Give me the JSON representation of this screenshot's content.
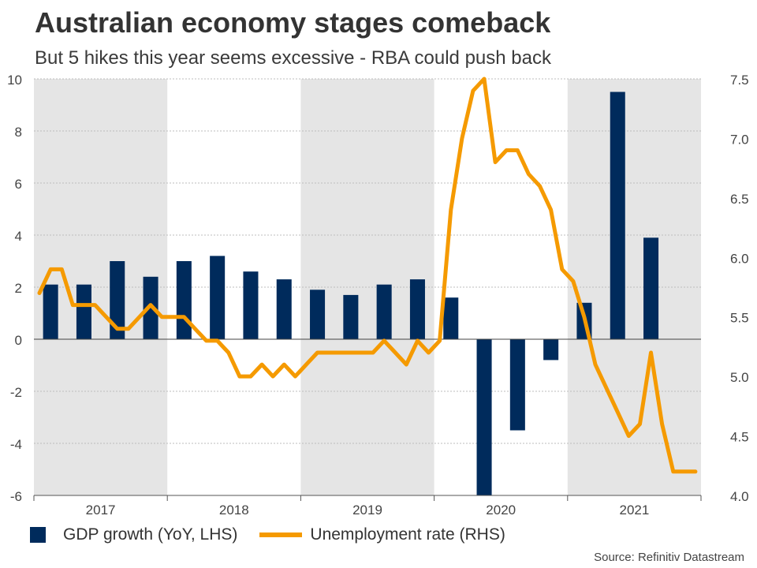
{
  "title": "Australian economy stages comeback",
  "subtitle": "But 5 hikes this year seems excessive - RBA could push back",
  "source": "Source: Refinitiv Datastream",
  "colors": {
    "bar": "#002b5c",
    "line": "#f59a00",
    "shade": "#e5e5e5",
    "grid": "#bdbdbd"
  },
  "legend": {
    "bar_label": "GDP growth (YoY, LHS)",
    "line_label": "Unemployment rate (RHS)"
  },
  "chart_data": {
    "type": "bar",
    "y_left": {
      "range": [
        -6,
        10
      ],
      "ticks": [
        "-6",
        "-4",
        "-2",
        "0",
        "2",
        "4",
        "6",
        "8",
        "10"
      ]
    },
    "y_right": {
      "range": [
        4.0,
        7.5
      ],
      "ticks": [
        "4.0",
        "4.5",
        "5.0",
        "5.5",
        "6.0",
        "6.5",
        "7.0",
        "7.5"
      ]
    },
    "year_labels": [
      "2017",
      "2018",
      "2019",
      "2020",
      "2021"
    ],
    "shaded_years": [
      "2017",
      "2019",
      "2021"
    ],
    "series": [
      {
        "name": "GDP growth (YoY, LHS)",
        "type": "bar",
        "axis": "left",
        "x": [
          "2017-Q1",
          "2017-Q2",
          "2017-Q3",
          "2017-Q4",
          "2018-Q1",
          "2018-Q2",
          "2018-Q3",
          "2018-Q4",
          "2019-Q1",
          "2019-Q2",
          "2019-Q3",
          "2019-Q4",
          "2020-Q1",
          "2020-Q2",
          "2020-Q3",
          "2020-Q4",
          "2021-Q1",
          "2021-Q2",
          "2021-Q3"
        ],
        "values": [
          2.1,
          2.1,
          3.0,
          2.4,
          3.0,
          3.2,
          2.6,
          2.3,
          1.9,
          1.7,
          2.1,
          2.3,
          1.6,
          -6.0,
          -3.5,
          -0.8,
          1.4,
          9.5,
          3.9
        ]
      },
      {
        "name": "Unemployment rate (RHS)",
        "type": "line",
        "axis": "right",
        "x": [
          "2017-01",
          "2017-02",
          "2017-03",
          "2017-04",
          "2017-05",
          "2017-06",
          "2017-07",
          "2017-08",
          "2017-09",
          "2017-10",
          "2017-11",
          "2017-12",
          "2018-01",
          "2018-02",
          "2018-03",
          "2018-04",
          "2018-05",
          "2018-06",
          "2018-07",
          "2018-08",
          "2018-09",
          "2018-10",
          "2018-11",
          "2018-12",
          "2019-01",
          "2019-02",
          "2019-03",
          "2019-04",
          "2019-05",
          "2019-06",
          "2019-07",
          "2019-08",
          "2019-09",
          "2019-10",
          "2019-11",
          "2019-12",
          "2020-01",
          "2020-02",
          "2020-03",
          "2020-04",
          "2020-05",
          "2020-06",
          "2020-07",
          "2020-08",
          "2020-09",
          "2020-10",
          "2020-11",
          "2020-12",
          "2021-01",
          "2021-02",
          "2021-03",
          "2021-04",
          "2021-05",
          "2021-06",
          "2021-07",
          "2021-08",
          "2021-09",
          "2021-10",
          "2021-11",
          "2021-12"
        ],
        "values": [
          5.7,
          5.9,
          5.9,
          5.6,
          5.6,
          5.6,
          5.5,
          5.4,
          5.4,
          5.5,
          5.6,
          5.5,
          5.5,
          5.5,
          5.4,
          5.3,
          5.3,
          5.2,
          5.0,
          5.0,
          5.1,
          5.0,
          5.1,
          5.0,
          5.1,
          5.2,
          5.2,
          5.2,
          5.2,
          5.2,
          5.2,
          5.3,
          5.2,
          5.1,
          5.3,
          5.2,
          5.3,
          6.4,
          7.0,
          7.4,
          7.5,
          6.8,
          6.9,
          6.9,
          6.7,
          6.6,
          6.4,
          5.9,
          5.8,
          5.5,
          5.1,
          4.9,
          4.7,
          4.5,
          4.6,
          5.2,
          4.6,
          4.2,
          4.2,
          4.2
        ]
      }
    ]
  }
}
